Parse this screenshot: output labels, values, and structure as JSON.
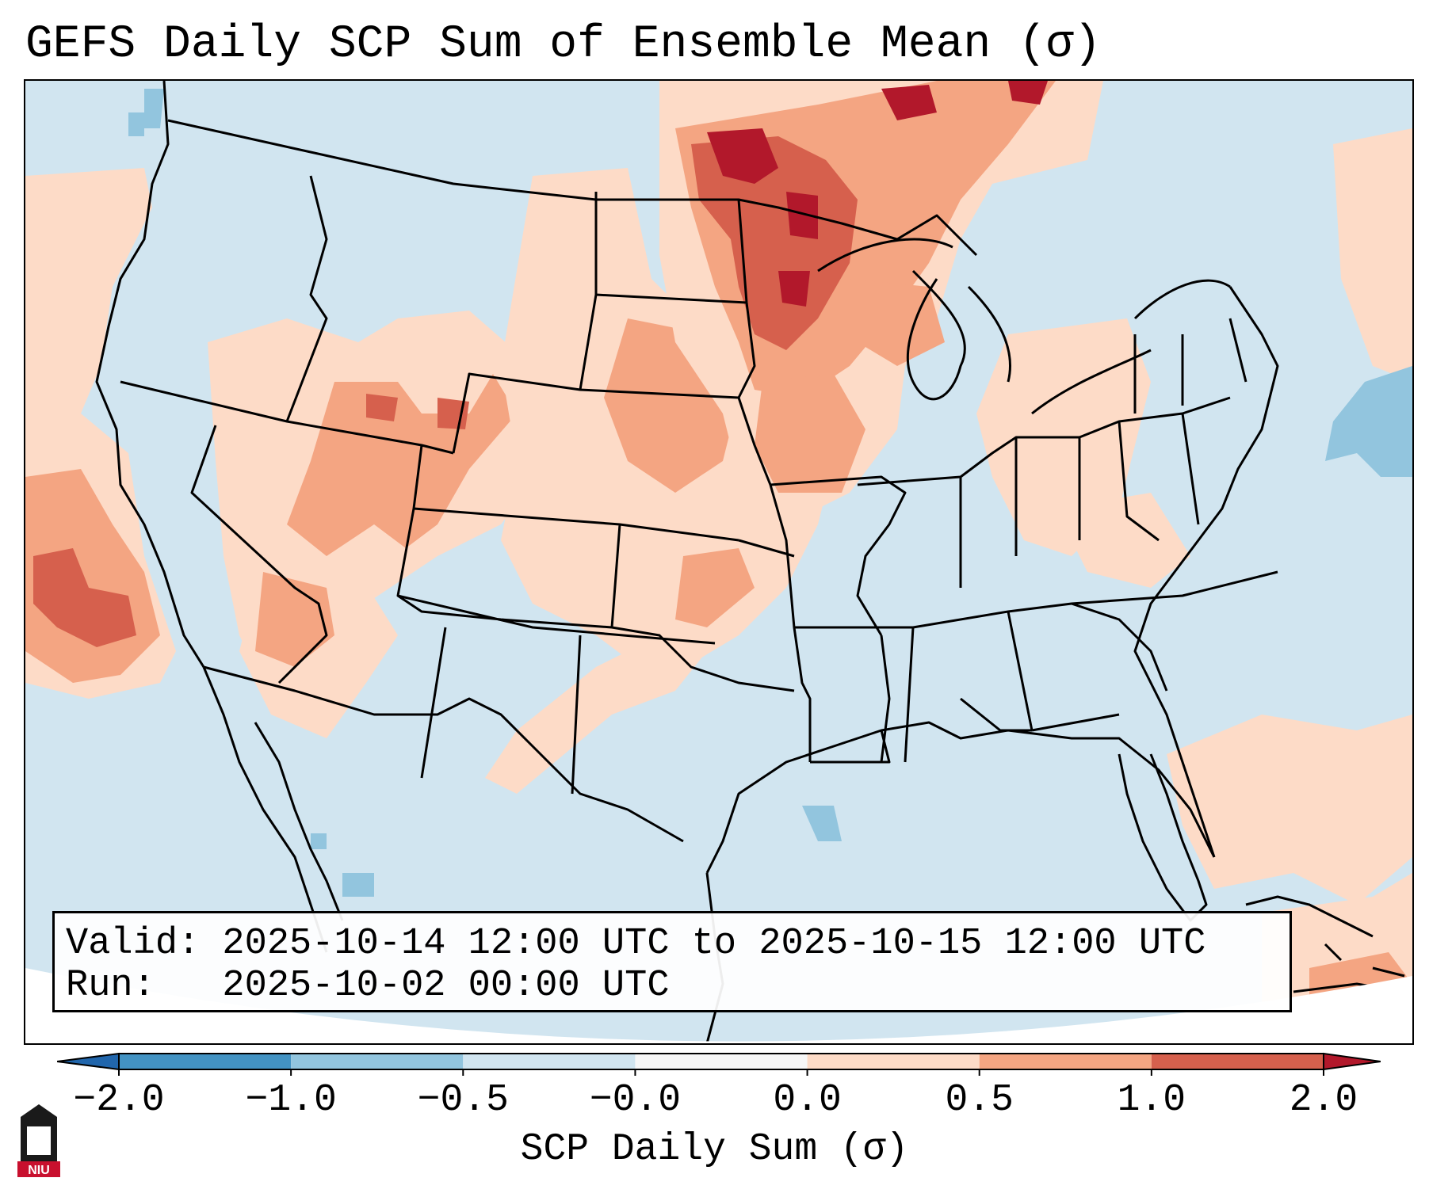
{
  "title": "GEFS Daily SCP Sum of Ensemble Mean (σ)",
  "info": {
    "valid": "Valid: 2025-10-14 12:00 UTC to 2025-10-15 12:00 UTC",
    "run": "Run:   2025-10-02 00:00 UTC"
  },
  "colorbar": {
    "label": "SCP Daily Sum (σ)",
    "ticks": [
      "−2.0",
      "−1.0",
      "−0.5",
      "−0.0",
      "0.0",
      "0.5",
      "1.0",
      "2.0"
    ],
    "bins": [
      {
        "range": "-2.0 to -1.0",
        "color": "#4393c3"
      },
      {
        "range": "-1.0 to -0.5",
        "color": "#92c5de"
      },
      {
        "range": "-0.5 to -0.0",
        "color": "#d1e5f0"
      },
      {
        "range": "-0.0 to 0.0",
        "color": "#f7f7f7"
      },
      {
        "range": "0.0 to 0.5",
        "color": "#fddbc7"
      },
      {
        "range": "0.5 to 1.0",
        "color": "#f4a582"
      },
      {
        "range": "1.0 to 2.0",
        "color": "#d6604d"
      }
    ],
    "under_color": "#2166ac",
    "over_color": "#b2182b"
  },
  "logo": {
    "text": "NIU",
    "color": "#c8102e"
  },
  "map": {
    "background_color": "#d1e5f0",
    "regions": [
      {
        "name": "Minnesota and Upper Midwest",
        "category": "1.0 to 2.0"
      },
      {
        "name": "Iowa and northern Missouri",
        "category": "0.5 to 1.0"
      },
      {
        "name": "Utah and Colorado Rockies",
        "category": "0.5 to 1.0"
      },
      {
        "name": "Eastern Pacific offshore California",
        "category": "1.0 to 2.0"
      },
      {
        "name": "Western Atlantic offshore Mid-Atlantic",
        "category": "-1.0 to -0.5"
      },
      {
        "name": "Southeast Atlantic offshore Georgia",
        "category": "0.0 to 0.5"
      }
    ]
  }
}
